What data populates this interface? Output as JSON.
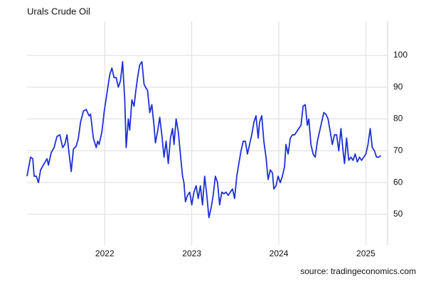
{
  "chart_data": {
    "type": "line",
    "title": "Urals Crude Oil",
    "source": "source: tradingeconomics.com",
    "color": "#1f2fd8",
    "grid": true,
    "xlim": [
      2021.107,
      2025.25
    ],
    "xticks": [
      2022,
      2023,
      2024,
      2025
    ],
    "ylim": [
      40.4,
      110.7
    ],
    "yticks": [
      50,
      60,
      70,
      80,
      90,
      100
    ],
    "x": [
      2021.107,
      2021.148,
      2021.173,
      2021.189,
      2021.214,
      2021.238,
      2021.263,
      2021.304,
      2021.337,
      2021.353,
      2021.386,
      2021.418,
      2021.451,
      2021.484,
      2021.517,
      2021.541,
      2021.566,
      2021.591,
      2021.615,
      2021.64,
      2021.673,
      2021.697,
      2021.722,
      2021.755,
      2021.787,
      2021.82,
      2021.837,
      2021.869,
      2021.902,
      2021.918,
      2021.935,
      2021.968,
      2021.992,
      2022.025,
      2022.058,
      2022.082,
      2022.107,
      2022.132,
      2022.156,
      2022.181,
      2022.205,
      2022.23,
      2022.246,
      2022.271,
      2022.287,
      2022.312,
      2022.337,
      2022.353,
      2022.377,
      2022.402,
      2022.427,
      2022.451,
      2022.468,
      2022.492,
      2022.517,
      2022.541,
      2022.566,
      2022.582,
      2022.607,
      2022.632,
      2022.656,
      2022.681,
      2022.705,
      2022.73,
      2022.755,
      2022.779,
      2022.796,
      2022.82,
      2022.845,
      2022.869,
      2022.894,
      2022.91,
      2022.927,
      2022.951,
      2022.976,
      2023.0,
      2023.025,
      2023.05,
      2023.074,
      2023.099,
      2023.123,
      2023.148,
      2023.173,
      2023.197,
      2023.222,
      2023.246,
      2023.271,
      2023.296,
      2023.32,
      2023.345,
      2023.369,
      2023.394,
      2023.418,
      2023.443,
      2023.468,
      2023.492,
      2023.517,
      2023.541,
      2023.566,
      2023.591,
      2023.615,
      2023.64,
      2023.664,
      2023.689,
      2023.714,
      2023.738,
      2023.763,
      2023.779,
      2023.804,
      2023.828,
      2023.853,
      2023.877,
      2023.902,
      2023.927,
      2023.943,
      2023.968,
      2023.992,
      2024.017,
      2024.041,
      2024.066,
      2024.082,
      2024.107,
      2024.132,
      2024.156,
      2024.181,
      2024.205,
      2024.23,
      2024.255,
      2024.279,
      2024.304,
      2024.328,
      2024.345,
      2024.369,
      2024.394,
      2024.418,
      2024.443,
      2024.468,
      2024.492,
      2024.517,
      2024.541,
      2024.566,
      2024.591,
      2024.615,
      2024.64,
      2024.664,
      2024.689,
      2024.714,
      2024.738,
      2024.755,
      2024.779,
      2024.804,
      2024.828,
      2024.853,
      2024.877,
      2024.902,
      2024.927,
      2024.951,
      2024.976,
      2025.0,
      2025.025,
      2025.05,
      2025.074,
      2025.099,
      2025.123,
      2025.148,
      2025.173
    ],
    "values": [
      62,
      68,
      67.5,
      62,
      62,
      60,
      64,
      66,
      67.5,
      65.5,
      69.5,
      71,
      74.5,
      75,
      71,
      72,
      75,
      69,
      63.5,
      70.5,
      71.5,
      74,
      79,
      82.5,
      83,
      81,
      81.5,
      74,
      71,
      73,
      72,
      76,
      82,
      88,
      94,
      96,
      93,
      93,
      90,
      92,
      98,
      86,
      71,
      80,
      76.5,
      86,
      84,
      88,
      93,
      97,
      98,
      91,
      90,
      89,
      82,
      84.5,
      78,
      72.5,
      76,
      80.5,
      75,
      68,
      73,
      66,
      74,
      77,
      72,
      80,
      76,
      69,
      62,
      60,
      54,
      56,
      57,
      53,
      57,
      59,
      55,
      59,
      53,
      62,
      56,
      49,
      52,
      56,
      62,
      60,
      53,
      57,
      56.5,
      57,
      56,
      57,
      58,
      55,
      62,
      66,
      70,
      73,
      73,
      69,
      72,
      75,
      79,
      81,
      74,
      79,
      81,
      73,
      68,
      61,
      64,
      63,
      58,
      59,
      62,
      60,
      62,
      65,
      72,
      69,
      74,
      75,
      75,
      76,
      77,
      78,
      84,
      84.5,
      78,
      80,
      72,
      69,
      68,
      73,
      76,
      79,
      82,
      81.5,
      80,
      76,
      72,
      75,
      75,
      70,
      77,
      70,
      66,
      74,
      67,
      68,
      67,
      69,
      66.5,
      68,
      67,
      68,
      69,
      72,
      77,
      71,
      70,
      68,
      68,
      68.5
    ]
  }
}
